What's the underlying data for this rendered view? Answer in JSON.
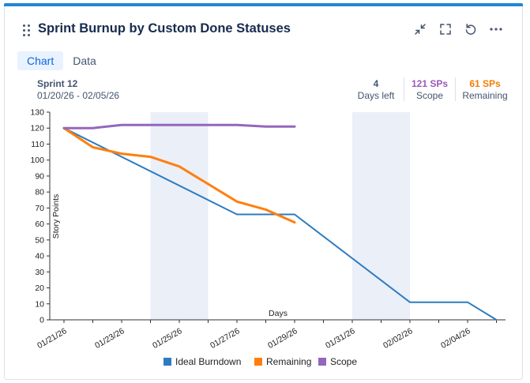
{
  "widget": {
    "title": "Sprint Burnup by Custom Done Statuses",
    "tabs": [
      "Chart",
      "Data"
    ],
    "active_tab": "Chart",
    "controls": [
      "collapse-icon",
      "fullscreen-icon",
      "refresh-icon",
      "more-icon"
    ]
  },
  "sprint": {
    "name": "Sprint 12",
    "dates": "01/20/26 - 02/05/26"
  },
  "stats": [
    {
      "value": "4",
      "label": "Days left",
      "color": "#44546f"
    },
    {
      "value": "121 SPs",
      "label": "Scope",
      "color": "#9b59b6"
    },
    {
      "value": "61 SPs",
      "label": "Remaining",
      "color": "#f57c00"
    }
  ],
  "chart_data": {
    "type": "line",
    "xlabel": "Days",
    "ylabel": "Story Points",
    "ylim": [
      0,
      130
    ],
    "yticks": [
      0,
      10,
      20,
      30,
      40,
      50,
      60,
      70,
      80,
      90,
      100,
      110,
      120,
      130
    ],
    "x_tick_labels": [
      "01/21/26",
      "01/23/26",
      "01/25/26",
      "01/27/26",
      "01/29/26",
      "01/31/26",
      "02/02/26",
      "02/04/26"
    ],
    "weekend_bands": [
      [
        "01/24/26",
        "01/26/26"
      ],
      [
        "01/31/26",
        "02/02/26"
      ]
    ],
    "series": [
      {
        "name": "Ideal Burndown",
        "color": "#2e7bbf",
        "points": [
          [
            "01/21/26",
            120
          ],
          [
            "01/27/26",
            66
          ],
          [
            "01/29/26",
            66
          ],
          [
            "02/02/26",
            11
          ],
          [
            "02/04/26",
            11
          ],
          [
            "02/05/26",
            0
          ]
        ]
      },
      {
        "name": "Remaining",
        "color": "#ff7f0e",
        "points": [
          [
            "01/21/26",
            120
          ],
          [
            "01/22/26",
            108
          ],
          [
            "01/23/26",
            104
          ],
          [
            "01/24/26",
            102
          ],
          [
            "01/25/26",
            96
          ],
          [
            "01/26/26",
            85
          ],
          [
            "01/27/26",
            74
          ],
          [
            "01/28/26",
            69
          ],
          [
            "01/29/26",
            61
          ]
        ]
      },
      {
        "name": "Scope",
        "color": "#9467bd",
        "points": [
          [
            "01/21/26",
            120
          ],
          [
            "01/22/26",
            120
          ],
          [
            "01/23/26",
            122
          ],
          [
            "01/24/26",
            122
          ],
          [
            "01/25/26",
            122
          ],
          [
            "01/26/26",
            122
          ],
          [
            "01/27/26",
            122
          ],
          [
            "01/28/26",
            121
          ],
          [
            "01/29/26",
            121
          ]
        ]
      }
    ],
    "legend_position": "bottom-center"
  }
}
